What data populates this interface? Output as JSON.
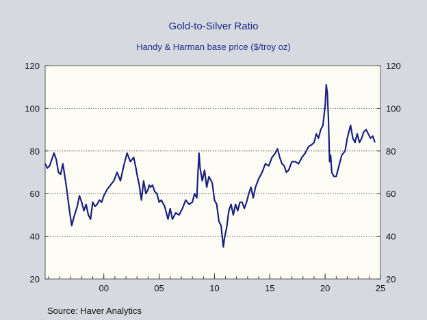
{
  "chart_data": {
    "type": "line",
    "title": "Gold-to-Silver Ratio",
    "subtitle": "Handy & Harman base price ($/troy oz)",
    "source": "Source:  Haver Analytics",
    "xlabel": "",
    "ylabel": "",
    "xlim": [
      1994.7,
      2025
    ],
    "ylim": [
      20,
      120
    ],
    "yticks": [
      20,
      40,
      60,
      80,
      100,
      120
    ],
    "xticks": [
      {
        "value": 2000,
        "label": "00"
      },
      {
        "value": 2005,
        "label": "05"
      },
      {
        "value": 2010,
        "label": "10"
      },
      {
        "value": 2015,
        "label": "15"
      },
      {
        "value": 2020,
        "label": "20"
      },
      {
        "value": 2025,
        "label": "25"
      }
    ],
    "grid": "horizontal-dotted",
    "color": "#1a1f80",
    "series": [
      {
        "x": [
          1994.7,
          1994.9,
          1995.1,
          1995.3,
          1995.5,
          1995.7,
          1995.9,
          1996.1,
          1996.3,
          1996.6,
          1996.9,
          1997.1,
          1997.3,
          1997.6,
          1997.8,
          1998.0,
          1998.2,
          1998.4,
          1998.6,
          1998.8,
          1999.0,
          1999.2,
          1999.4,
          1999.6,
          1999.8,
          2000.0,
          2000.3,
          2000.6,
          2000.9,
          2001.2,
          2001.5,
          2001.8,
          2002.1,
          2002.4,
          2002.7,
          2002.9,
          2003.0,
          2003.2,
          2003.4,
          2003.6,
          2003.8,
          2004.0,
          2004.1,
          2004.2,
          2004.4,
          2004.6,
          2004.8,
          2005.0,
          2005.2,
          2005.5,
          2005.8,
          2006.0,
          2006.2,
          2006.5,
          2006.8,
          2007.1,
          2007.4,
          2007.7,
          2008.0,
          2008.2,
          2008.4,
          2008.5,
          2008.6,
          2008.7,
          2008.9,
          2009.1,
          2009.3,
          2009.5,
          2009.8,
          2010.0,
          2010.2,
          2010.4,
          2010.6,
          2010.7,
          2010.8,
          2010.9,
          2011.1,
          2011.3,
          2011.5,
          2011.7,
          2011.9,
          2012.1,
          2012.3,
          2012.5,
          2012.7,
          2012.9,
          2013.1,
          2013.3,
          2013.5,
          2013.7,
          2014.0,
          2014.3,
          2014.6,
          2014.9,
          2015.2,
          2015.5,
          2015.7,
          2015.9,
          2016.1,
          2016.3,
          2016.5,
          2016.7,
          2017.0,
          2017.3,
          2017.6,
          2017.9,
          2018.2,
          2018.5,
          2018.8,
          2019.0,
          2019.2,
          2019.4,
          2019.6,
          2019.8,
          2020.0,
          2020.1,
          2020.2,
          2020.3,
          2020.4,
          2020.5,
          2020.6,
          2020.8,
          2021.0,
          2021.2,
          2021.5,
          2021.8,
          2022.0,
          2022.1,
          2022.3,
          2022.5,
          2022.7,
          2022.9,
          2023.1,
          2023.3,
          2023.5,
          2023.7,
          2023.9,
          2024.1,
          2024.3,
          2024.5
        ],
        "y": [
          74,
          72,
          73,
          76,
          79,
          76,
          70,
          69,
          74,
          64,
          52,
          45,
          49,
          54,
          59,
          56,
          52,
          55,
          50,
          48,
          56,
          54,
          55,
          57,
          56,
          59,
          62,
          64,
          66,
          70,
          66,
          73,
          79,
          75,
          77,
          72,
          69,
          64,
          57,
          66,
          60,
          62,
          64,
          63,
          64,
          61,
          60,
          56,
          57,
          54,
          48,
          53,
          48,
          51,
          50,
          53,
          57,
          55,
          56,
          60,
          58,
          69,
          79,
          72,
          66,
          71,
          63,
          68,
          65,
          57,
          55,
          47,
          45,
          40,
          35,
          39,
          44,
          52,
          55,
          50,
          55,
          52,
          56,
          56,
          53,
          56,
          60,
          63,
          58,
          63,
          67,
          70,
          74,
          73,
          77,
          79,
          81,
          77,
          74,
          73,
          70,
          71,
          75,
          75,
          74,
          77,
          79,
          82,
          83,
          84,
          88,
          86,
          90,
          92,
          101,
          111,
          107,
          95,
          75,
          78,
          70,
          68,
          68,
          72,
          78,
          80,
          86,
          88,
          92,
          86,
          84,
          88,
          84,
          86,
          89,
          90,
          88,
          86,
          87,
          84
        ]
      }
    ]
  }
}
